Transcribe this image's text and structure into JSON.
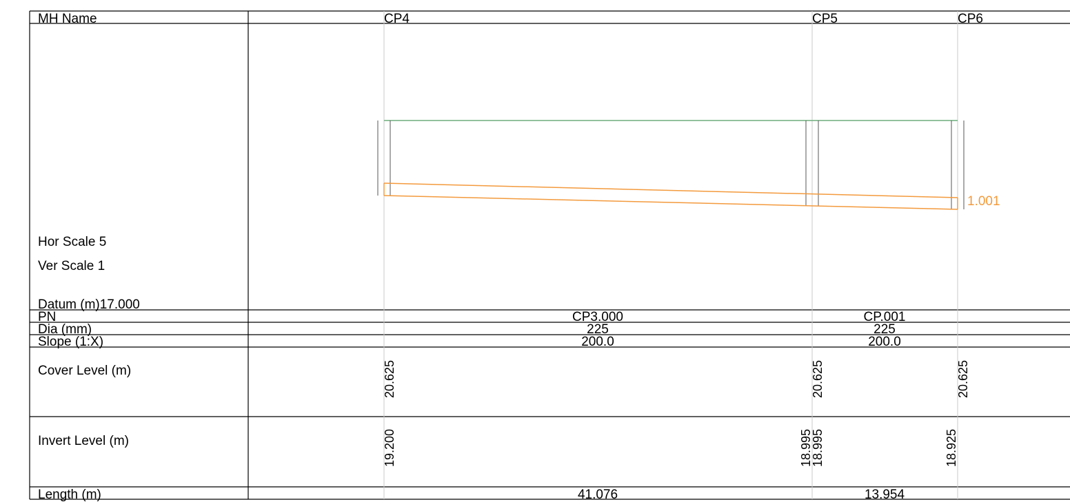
{
  "labels": {
    "mh_name": "MH Name",
    "hor_scale": "Hor Scale 5",
    "ver_scale": "Ver Scale 1",
    "datum": "Datum (m)17.000",
    "pn": "PN",
    "dia": "Dia (mm)",
    "slope": "Slope (1:X)",
    "cover_level": "Cover Level (m)",
    "invert_level": "Invert Level (m)",
    "length": "Length (m)"
  },
  "manholes": [
    {
      "name": "CP4",
      "cover_level": "20.625",
      "invert_out": "19.200"
    },
    {
      "name": "CP5",
      "cover_level": "20.625",
      "invert_in": "18.995",
      "invert_out": "18.995"
    },
    {
      "name": "CP6",
      "cover_level": "20.625",
      "invert_in": "18.925"
    }
  ],
  "pipes": [
    {
      "pn": "CP3.000",
      "dia": "225",
      "slope": "200.0",
      "length": "41.076"
    },
    {
      "pn": "CP.001",
      "dia": "225",
      "slope": "200.0",
      "length": "13.954"
    }
  ],
  "annotation": "1.001",
  "colors": {
    "pipe": "#f39a3c",
    "ground": "#6fae7b",
    "grid_line": "#c8c8c8",
    "chamber": "#555555"
  }
}
